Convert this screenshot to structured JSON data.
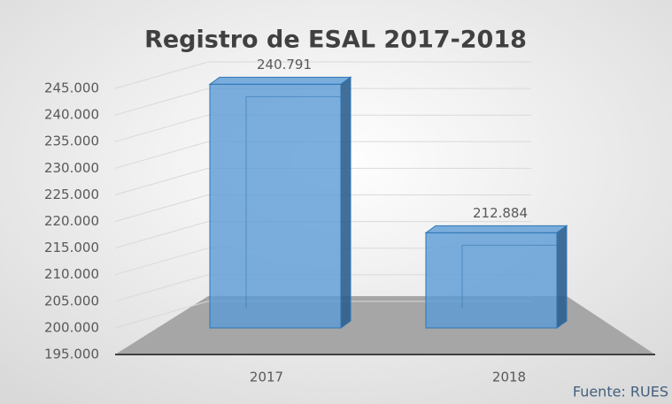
{
  "chart_data": {
    "type": "bar3d",
    "title": "Registro de ESAL 2017-2018",
    "categories": [
      "2017",
      "2018"
    ],
    "values": [
      240791,
      212884
    ],
    "value_labels": [
      "240.791",
      "212.884"
    ],
    "color": "#5b9bd5",
    "ylim": [
      195000,
      245000
    ],
    "yticks": [
      {
        "value": 195000,
        "label": "195.000"
      },
      {
        "value": 200000,
        "label": "200.000"
      },
      {
        "value": 205000,
        "label": "205.000"
      },
      {
        "value": 210000,
        "label": "210.000"
      },
      {
        "value": 215000,
        "label": "215.000"
      },
      {
        "value": 220000,
        "label": "220.000"
      },
      {
        "value": 225000,
        "label": "225.000"
      },
      {
        "value": 230000,
        "label": "230.000"
      },
      {
        "value": 235000,
        "label": "235.000"
      },
      {
        "value": 240000,
        "label": "240.000"
      },
      {
        "value": 245000,
        "label": "245.000"
      }
    ],
    "grid": true,
    "annotation": "Fuente: RUES"
  }
}
